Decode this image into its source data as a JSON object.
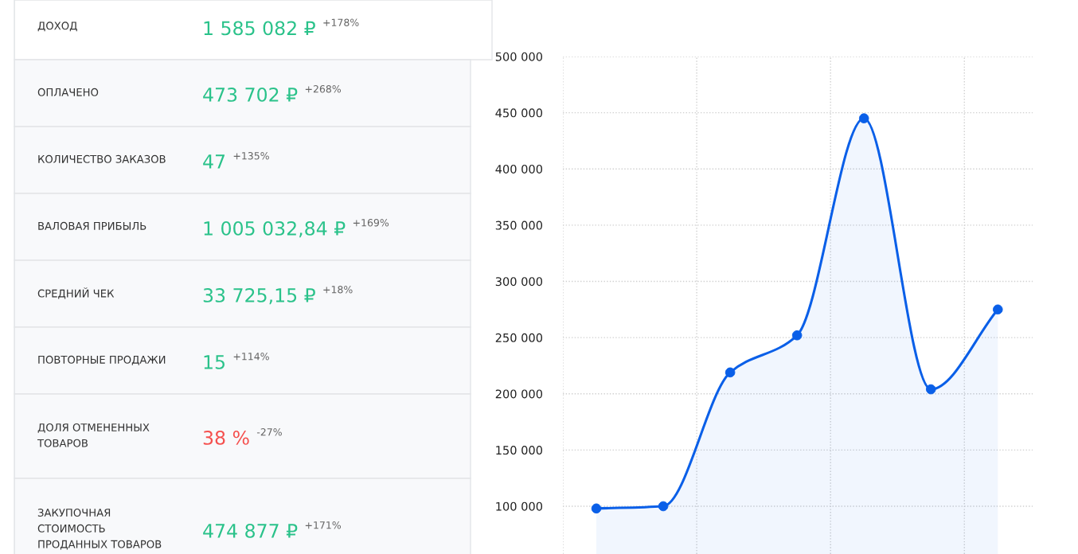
{
  "chart_data": [
    {
      "type": "other",
      "categories": [
        "ДОХОД",
        "ОПЛАЧЕНО",
        "КОЛИЧЕСТВО ЗАКАЗОВ",
        "ВАЛОВАЯ ПРИБЫЛЬ",
        "СРЕДНИЙ ЧЕК",
        "ПОВТОРНЫЕ ПРОДАЖИ",
        "ДОЛЯ ОТМЕНЕННЫХ\nТОВАРОВ",
        "ЗАКУПОЧНАЯ\nСТОИМОСТЬ\nПРОДАННЫХ ТОВАРОВ"
      ],
      "colors": [
        "#2ac28a",
        "#2ac28a",
        "#2ac28a",
        "#2ac28a",
        "#2ac28a",
        "#2ac28a",
        "#f5504e",
        "#2ac28a"
      ],
      "annotations": [
        "1 585 082 ₽",
        "+178%",
        "473 702 ₽",
        "+268%",
        "47",
        "+135%",
        "1 005 032,84 ₽",
        "+169%",
        "33 725,15 ₽",
        "+18%",
        "15",
        "+114%",
        "38 %",
        "-27%",
        "474 877 ₽",
        "+171%"
      ]
    },
    {
      "type": "area",
      "categories": [
        null,
        null,
        null,
        null,
        null,
        null,
        null
      ],
      "series": [
        {
          "color": "#0a5fe8",
          "values": [
            98000,
            100000,
            219000,
            252000,
            445000,
            204000,
            275000
          ]
        }
      ],
      "ylim": [
        57500,
        500000
      ],
      "yticks": [
        {
          "value": 100000,
          "label": "100 000"
        },
        {
          "value": 150000,
          "label": "150 000"
        },
        {
          "value": 200000,
          "label": "200 000"
        },
        {
          "value": 250000,
          "label": "250 000"
        },
        {
          "value": 300000,
          "label": "300 000"
        },
        {
          "value": 350000,
          "label": "350 000"
        },
        {
          "value": 400000,
          "label": "400 000"
        },
        {
          "value": 450000,
          "label": "450 000"
        },
        {
          "value": 500000,
          "label": "500 000"
        }
      ],
      "grid": true,
      "marker": "circle",
      "tick_labels": "y"
    }
  ]
}
